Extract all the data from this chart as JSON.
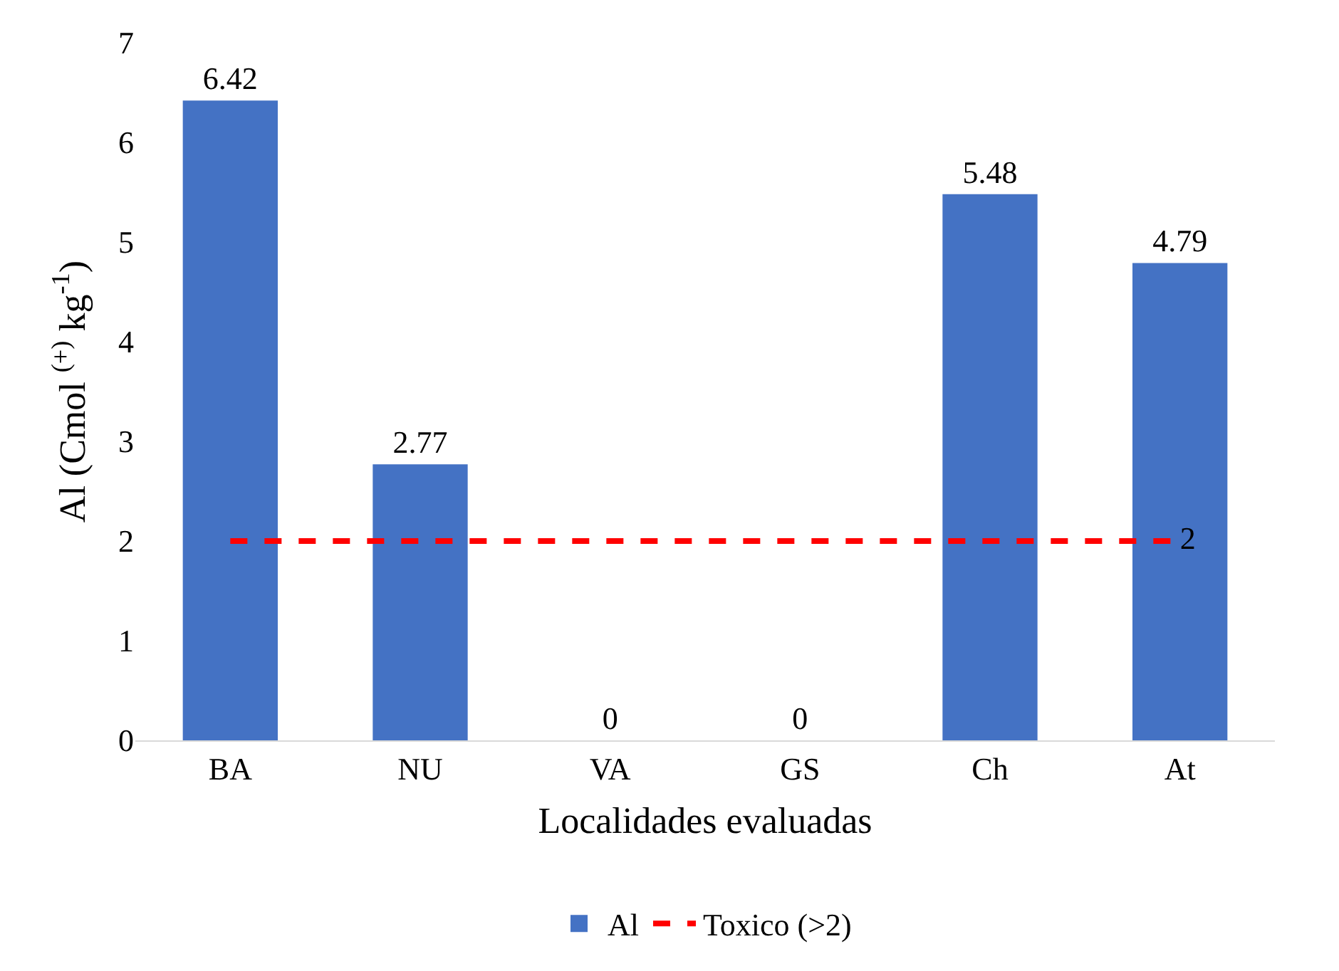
{
  "chart_data": {
    "type": "bar",
    "xlabel": "Localidades evaluadas",
    "ylabel": "Al (Cmol $^{(+)}$ kg$^{-1}$)",
    "categories": [
      "BA",
      "NU",
      "VA",
      "GS",
      "Ch",
      "At"
    ],
    "series": [
      {
        "name": "Al",
        "color": "#4472c4",
        "values": [
          6.42,
          2.77,
          0,
          0,
          5.48,
          4.79
        ],
        "value_labels": [
          "6.42",
          "2.77",
          "0",
          "0",
          "5.48",
          "4.79"
        ]
      },
      {
        "name": "Toxico (>2)",
        "type": "line",
        "color": "#ff0000",
        "line_style": "dashed",
        "values": [
          2,
          2,
          2,
          2,
          2,
          2
        ],
        "value_labels": [
          null,
          null,
          null,
          null,
          null,
          "2"
        ]
      }
    ],
    "ylim": [
      0,
      7
    ],
    "yticks": [
      0,
      1,
      2,
      3,
      4,
      5,
      6,
      7
    ],
    "legend": "bottom"
  }
}
